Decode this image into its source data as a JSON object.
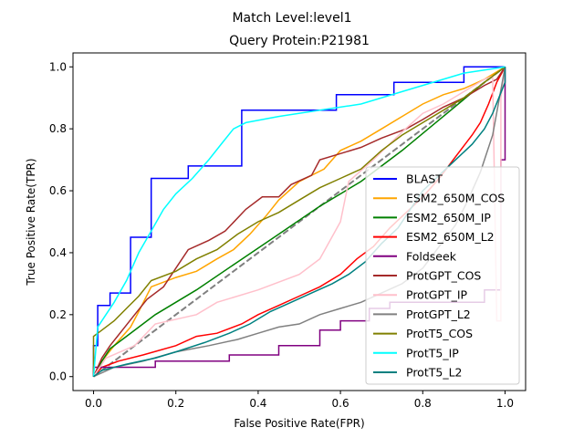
{
  "chart_data": {
    "type": "line",
    "suptitle": "Match Level:level1",
    "title": "Query Protein:P21981",
    "xlabel": "False Positive Rate(FPR)",
    "ylabel": "True Positive Rate(TPR)",
    "xlim": [
      -0.05,
      1.05
    ],
    "ylim": [
      -0.045,
      1.045
    ],
    "xticks": [
      0.0,
      0.2,
      0.4,
      0.6,
      0.8,
      1.0
    ],
    "yticks": [
      0.0,
      0.2,
      0.4,
      0.6,
      0.8,
      1.0
    ],
    "xtick_labels": [
      "0.0",
      "0.2",
      "0.4",
      "0.6",
      "0.8",
      "1.0"
    ],
    "ytick_labels": [
      "0.0",
      "0.2",
      "0.4",
      "0.6",
      "0.8",
      "1.0"
    ],
    "grid": false,
    "legend_position": "lower right",
    "diagonal": {
      "style": "dashed",
      "color": "#808080",
      "points": [
        [
          0,
          0
        ],
        [
          1,
          1
        ]
      ]
    },
    "series": [
      {
        "name": "BLAST",
        "color": "#0000ff",
        "points": [
          [
            0,
            0
          ],
          [
            0,
            0.1
          ],
          [
            0.01,
            0.1
          ],
          [
            0.01,
            0.23
          ],
          [
            0.04,
            0.23
          ],
          [
            0.04,
            0.27
          ],
          [
            0.09,
            0.27
          ],
          [
            0.09,
            0.45
          ],
          [
            0.14,
            0.45
          ],
          [
            0.14,
            0.64
          ],
          [
            0.23,
            0.64
          ],
          [
            0.23,
            0.68
          ],
          [
            0.36,
            0.68
          ],
          [
            0.36,
            0.86
          ],
          [
            0.59,
            0.86
          ],
          [
            0.59,
            0.91
          ],
          [
            0.73,
            0.91
          ],
          [
            0.73,
            0.95
          ],
          [
            0.9,
            0.95
          ],
          [
            0.9,
            1.0
          ],
          [
            1.0,
            1.0
          ]
        ]
      },
      {
        "name": "ESM2_650M_COS",
        "color": "#ffa500",
        "points": [
          [
            0,
            0
          ],
          [
            0.02,
            0.05
          ],
          [
            0.05,
            0.1
          ],
          [
            0.09,
            0.16
          ],
          [
            0.11,
            0.21
          ],
          [
            0.14,
            0.29
          ],
          [
            0.2,
            0.32
          ],
          [
            0.25,
            0.34
          ],
          [
            0.3,
            0.38
          ],
          [
            0.34,
            0.41
          ],
          [
            0.38,
            0.46
          ],
          [
            0.42,
            0.52
          ],
          [
            0.45,
            0.57
          ],
          [
            0.5,
            0.63
          ],
          [
            0.56,
            0.67
          ],
          [
            0.6,
            0.73
          ],
          [
            0.65,
            0.76
          ],
          [
            0.7,
            0.8
          ],
          [
            0.75,
            0.84
          ],
          [
            0.8,
            0.88
          ],
          [
            0.85,
            0.91
          ],
          [
            0.9,
            0.93
          ],
          [
            0.95,
            0.96
          ],
          [
            1.0,
            1.0
          ]
        ]
      },
      {
        "name": "ESM2_650M_IP",
        "color": "#008000",
        "points": [
          [
            0,
            0
          ],
          [
            0.02,
            0.05
          ],
          [
            0.04,
            0.09
          ],
          [
            0.08,
            0.13
          ],
          [
            0.15,
            0.2
          ],
          [
            0.25,
            0.28
          ],
          [
            0.35,
            0.37
          ],
          [
            0.45,
            0.46
          ],
          [
            0.55,
            0.55
          ],
          [
            0.65,
            0.63
          ],
          [
            0.75,
            0.73
          ],
          [
            0.85,
            0.84
          ],
          [
            0.95,
            0.95
          ],
          [
            1.0,
            1.0
          ]
        ]
      },
      {
        "name": "ESM2_650M_L2",
        "color": "#ff0000",
        "points": [
          [
            0,
            0
          ],
          [
            0.02,
            0.03
          ],
          [
            0.06,
            0.05
          ],
          [
            0.12,
            0.07
          ],
          [
            0.2,
            0.1
          ],
          [
            0.25,
            0.13
          ],
          [
            0.3,
            0.14
          ],
          [
            0.36,
            0.17
          ],
          [
            0.4,
            0.2
          ],
          [
            0.45,
            0.23
          ],
          [
            0.5,
            0.26
          ],
          [
            0.55,
            0.29
          ],
          [
            0.6,
            0.33
          ],
          [
            0.64,
            0.38
          ],
          [
            0.68,
            0.42
          ],
          [
            0.72,
            0.48
          ],
          [
            0.76,
            0.53
          ],
          [
            0.8,
            0.58
          ],
          [
            0.84,
            0.64
          ],
          [
            0.88,
            0.71
          ],
          [
            0.92,
            0.78
          ],
          [
            0.94,
            0.82
          ],
          [
            0.96,
            0.88
          ],
          [
            0.98,
            0.95
          ],
          [
            1.0,
            1.0
          ]
        ]
      },
      {
        "name": "Foldseek",
        "color": "#800080",
        "points": [
          [
            0,
            0
          ],
          [
            0,
            0.03
          ],
          [
            0.15,
            0.03
          ],
          [
            0.15,
            0.05
          ],
          [
            0.33,
            0.05
          ],
          [
            0.33,
            0.07
          ],
          [
            0.45,
            0.07
          ],
          [
            0.45,
            0.1
          ],
          [
            0.55,
            0.1
          ],
          [
            0.55,
            0.15
          ],
          [
            0.6,
            0.15
          ],
          [
            0.6,
            0.18
          ],
          [
            0.67,
            0.18
          ],
          [
            0.67,
            0.22
          ],
          [
            0.72,
            0.22
          ],
          [
            0.72,
            0.24
          ],
          [
            0.95,
            0.24
          ],
          [
            0.95,
            0.28
          ],
          [
            0.99,
            0.28
          ],
          [
            0.99,
            0.7
          ],
          [
            1.0,
            0.7
          ],
          [
            1.0,
            1.0
          ]
        ]
      },
      {
        "name": "ProtGPT_COS",
        "color": "#a52a2a",
        "points": [
          [
            0,
            0
          ],
          [
            0.02,
            0.06
          ],
          [
            0.04,
            0.1
          ],
          [
            0.07,
            0.15
          ],
          [
            0.1,
            0.2
          ],
          [
            0.13,
            0.25
          ],
          [
            0.17,
            0.29
          ],
          [
            0.2,
            0.35
          ],
          [
            0.23,
            0.41
          ],
          [
            0.28,
            0.44
          ],
          [
            0.32,
            0.47
          ],
          [
            0.37,
            0.54
          ],
          [
            0.41,
            0.58
          ],
          [
            0.45,
            0.58
          ],
          [
            0.48,
            0.62
          ],
          [
            0.53,
            0.65
          ],
          [
            0.55,
            0.7
          ],
          [
            0.6,
            0.72
          ],
          [
            0.65,
            0.74
          ],
          [
            0.7,
            0.77
          ],
          [
            0.76,
            0.8
          ],
          [
            0.8,
            0.83
          ],
          [
            0.85,
            0.87
          ],
          [
            0.9,
            0.9
          ],
          [
            0.95,
            0.94
          ],
          [
            0.98,
            0.96
          ],
          [
            1.0,
            1.0
          ]
        ]
      },
      {
        "name": "ProtGPT_IP",
        "color": "#ffc0cb",
        "points": [
          [
            0,
            0
          ],
          [
            0.03,
            0.06
          ],
          [
            0.1,
            0.1
          ],
          [
            0.15,
            0.17
          ],
          [
            0.25,
            0.2
          ],
          [
            0.3,
            0.24
          ],
          [
            0.4,
            0.28
          ],
          [
            0.5,
            0.33
          ],
          [
            0.55,
            0.38
          ],
          [
            0.6,
            0.5
          ],
          [
            0.62,
            0.63
          ],
          [
            0.68,
            0.7
          ],
          [
            0.75,
            0.79
          ],
          [
            0.8,
            0.85
          ],
          [
            0.85,
            0.88
          ],
          [
            0.9,
            0.92
          ],
          [
            0.95,
            0.96
          ],
          [
            0.97,
            0.97
          ],
          [
            0.98,
            0.18
          ],
          [
            0.99,
            0.18
          ],
          [
            0.99,
            0.9
          ],
          [
            1.0,
            1.0
          ]
        ]
      },
      {
        "name": "ProtGPT_L2",
        "color": "#808080",
        "points": [
          [
            0,
            0
          ],
          [
            0.05,
            0.03
          ],
          [
            0.12,
            0.05
          ],
          [
            0.2,
            0.08
          ],
          [
            0.28,
            0.1
          ],
          [
            0.35,
            0.12
          ],
          [
            0.4,
            0.14
          ],
          [
            0.45,
            0.16
          ],
          [
            0.5,
            0.17
          ],
          [
            0.55,
            0.2
          ],
          [
            0.6,
            0.22
          ],
          [
            0.65,
            0.24
          ],
          [
            0.7,
            0.27
          ],
          [
            0.75,
            0.3
          ],
          [
            0.8,
            0.35
          ],
          [
            0.84,
            0.42
          ],
          [
            0.88,
            0.49
          ],
          [
            0.91,
            0.57
          ],
          [
            0.94,
            0.66
          ],
          [
            0.97,
            0.78
          ],
          [
            1.0,
            1.0
          ]
        ]
      },
      {
        "name": "ProtT5_COS",
        "color": "#808000",
        "points": [
          [
            0,
            0
          ],
          [
            0,
            0.13
          ],
          [
            0.02,
            0.15
          ],
          [
            0.05,
            0.18
          ],
          [
            0.08,
            0.22
          ],
          [
            0.11,
            0.26
          ],
          [
            0.14,
            0.31
          ],
          [
            0.2,
            0.34
          ],
          [
            0.25,
            0.38
          ],
          [
            0.3,
            0.41
          ],
          [
            0.35,
            0.46
          ],
          [
            0.4,
            0.5
          ],
          [
            0.45,
            0.53
          ],
          [
            0.5,
            0.57
          ],
          [
            0.55,
            0.61
          ],
          [
            0.6,
            0.64
          ],
          [
            0.65,
            0.67
          ],
          [
            0.7,
            0.73
          ],
          [
            0.75,
            0.78
          ],
          [
            0.8,
            0.82
          ],
          [
            0.85,
            0.86
          ],
          [
            0.9,
            0.9
          ],
          [
            0.95,
            0.95
          ],
          [
            1.0,
            1.0
          ]
        ]
      },
      {
        "name": "ProtT5_IP",
        "color": "#00ffff",
        "points": [
          [
            0,
            0
          ],
          [
            0.01,
            0.16
          ],
          [
            0.03,
            0.2
          ],
          [
            0.05,
            0.24
          ],
          [
            0.08,
            0.31
          ],
          [
            0.11,
            0.4
          ],
          [
            0.14,
            0.47
          ],
          [
            0.17,
            0.54
          ],
          [
            0.2,
            0.59
          ],
          [
            0.24,
            0.64
          ],
          [
            0.28,
            0.7
          ],
          [
            0.31,
            0.75
          ],
          [
            0.34,
            0.8
          ],
          [
            0.37,
            0.82
          ],
          [
            0.45,
            0.84
          ],
          [
            0.55,
            0.86
          ],
          [
            0.65,
            0.88
          ],
          [
            0.75,
            0.92
          ],
          [
            0.85,
            0.96
          ],
          [
            0.9,
            0.98
          ],
          [
            0.95,
            0.99
          ],
          [
            1.0,
            1.0
          ]
        ]
      },
      {
        "name": "ProtT5_L2",
        "color": "#008080",
        "points": [
          [
            0,
            0
          ],
          [
            0.02,
            0.02
          ],
          [
            0.08,
            0.04
          ],
          [
            0.15,
            0.06
          ],
          [
            0.2,
            0.08
          ],
          [
            0.27,
            0.11
          ],
          [
            0.33,
            0.14
          ],
          [
            0.38,
            0.17
          ],
          [
            0.43,
            0.21
          ],
          [
            0.48,
            0.24
          ],
          [
            0.53,
            0.27
          ],
          [
            0.58,
            0.3
          ],
          [
            0.62,
            0.33
          ],
          [
            0.66,
            0.37
          ],
          [
            0.7,
            0.43
          ],
          [
            0.74,
            0.48
          ],
          [
            0.77,
            0.54
          ],
          [
            0.8,
            0.6
          ],
          [
            0.84,
            0.65
          ],
          [
            0.88,
            0.7
          ],
          [
            0.92,
            0.75
          ],
          [
            0.95,
            0.8
          ],
          [
            0.97,
            0.85
          ],
          [
            1.0,
            0.95
          ],
          [
            1.0,
            1.0
          ]
        ]
      }
    ]
  }
}
